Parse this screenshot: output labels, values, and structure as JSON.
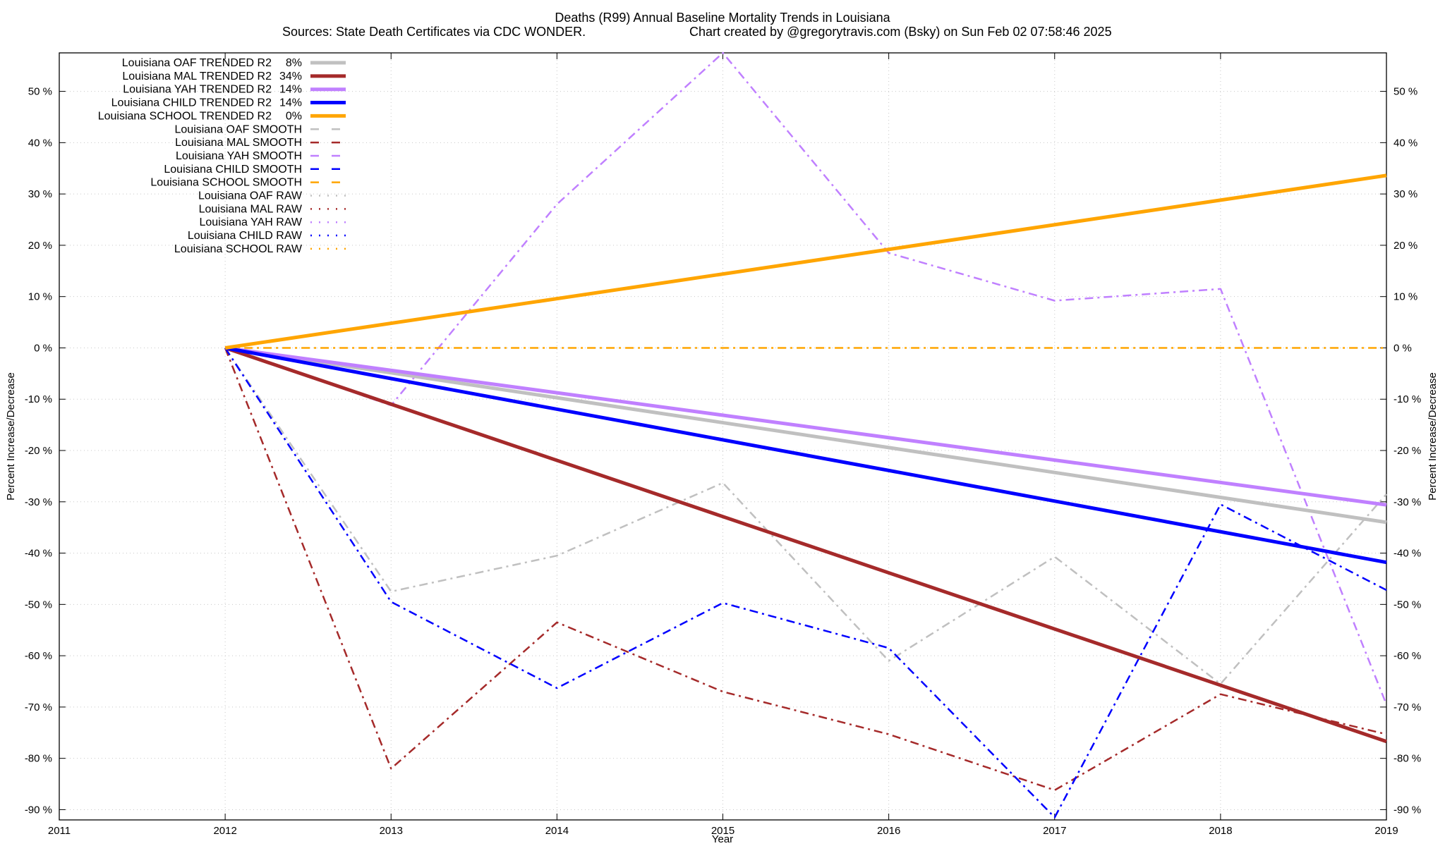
{
  "chart_data": {
    "type": "line",
    "title": "Deaths (R99)  Annual Baseline Mortality Trends in Louisiana",
    "subtitle_left": "Sources: State Death Certificates via CDC WONDER.",
    "subtitle_right": "Chart created by @gregorytravis.com (Bsky) on Sun Feb 02 07:58:46 2025",
    "xlabel": "Year",
    "ylabel": "Percent Increase/Decrease",
    "xlim": [
      2011,
      2019
    ],
    "ylim": [
      -92,
      57.5
    ],
    "x_ticks": [
      2011,
      2012,
      2013,
      2014,
      2015,
      2016,
      2017,
      2018,
      2019
    ],
    "y_ticks": [
      50,
      40,
      30,
      20,
      10,
      0,
      -10,
      -20,
      -30,
      -40,
      -50,
      -60,
      -70,
      -80,
      -90
    ],
    "y_tick_labels": [
      "50 %",
      "40 %",
      "30 %",
      "20 %",
      "10 %",
      "0 %",
      "-10 %",
      "-20 %",
      "-30 %",
      "-40 %",
      "-50 %",
      "-60 %",
      "-70 %",
      "-80 %",
      "-90 %"
    ],
    "grid": true,
    "legend_position": "top-left",
    "series": [
      {
        "name": "Louisiana OAF TRENDED R2",
        "r2": "8%",
        "style": "trend",
        "color": "#c0c0c0",
        "x": [
          2012,
          2019
        ],
        "values": [
          0,
          -34
        ]
      },
      {
        "name": "Louisiana MAL TRENDED R2",
        "r2": "34%",
        "style": "trend",
        "color": "#a52a2a",
        "x": [
          2012,
          2019
        ],
        "values": [
          0,
          -76.7
        ]
      },
      {
        "name": "Louisiana YAH TRENDED R2",
        "r2": "14%",
        "style": "trend",
        "color": "#c080ff",
        "x": [
          2012,
          2019
        ],
        "values": [
          0,
          -30.6
        ]
      },
      {
        "name": "Louisiana CHILD TRENDED R2",
        "r2": "14%",
        "style": "trend",
        "color": "#0000ff",
        "x": [
          2012,
          2019
        ],
        "values": [
          0,
          -41.8
        ]
      },
      {
        "name": "Louisiana SCHOOL TRENDED R2",
        "r2": "0%",
        "style": "trend",
        "color": "#ffa500",
        "x": [
          2012,
          2019
        ],
        "values": [
          0,
          33.6
        ]
      },
      {
        "name": "Louisiana OAF SMOOTH",
        "style": "smooth",
        "color": "#c0c0c0",
        "x": [
          2012,
          2013,
          2014,
          2015,
          2016,
          2017,
          2018,
          2019
        ],
        "values": [
          0,
          -47.5,
          -40.5,
          -26.3,
          -61,
          -40.7,
          -65.5,
          -28.5
        ]
      },
      {
        "name": "Louisiana MAL SMOOTH",
        "style": "smooth",
        "color": "#a52a2a",
        "x": [
          2012,
          2013,
          2014,
          2015,
          2016,
          2017,
          2018,
          2019
        ],
        "values": [
          0,
          -82,
          -53.5,
          -67,
          -75.3,
          -86.2,
          -67.5,
          -75.3
        ]
      },
      {
        "name": "Louisiana YAH SMOOTH",
        "style": "smooth",
        "color": "#c080ff",
        "x": [
          2012,
          2013,
          2014,
          2015,
          2016,
          2017,
          2018,
          2019
        ],
        "values": [
          0,
          -11.2,
          28,
          57.5,
          18.5,
          9.2,
          11.5,
          -69.5
        ]
      },
      {
        "name": "Louisiana CHILD SMOOTH",
        "style": "smooth",
        "color": "#0000ff",
        "x": [
          2012,
          2013,
          2014,
          2015,
          2016,
          2017,
          2018,
          2019
        ],
        "values": [
          0,
          -49.5,
          -66.3,
          -49.7,
          -58.5,
          -91.5,
          -30.5,
          -47.2
        ]
      },
      {
        "name": "Louisiana SCHOOL SMOOTH",
        "style": "smooth",
        "color": "#ffa500",
        "x": [
          2012,
          2013,
          2014,
          2015,
          2016,
          2017,
          2018,
          2019
        ],
        "values": [
          0,
          0,
          0,
          0,
          0,
          0,
          0,
          0
        ]
      },
      {
        "name": "Louisiana OAF RAW",
        "style": "raw",
        "color": "#c0c0c0",
        "x": [],
        "values": []
      },
      {
        "name": "Louisiana MAL RAW",
        "style": "raw",
        "color": "#a52a2a",
        "x": [],
        "values": []
      },
      {
        "name": "Louisiana YAH RAW",
        "style": "raw",
        "color": "#c080ff",
        "x": [],
        "values": []
      },
      {
        "name": "Louisiana CHILD RAW",
        "style": "raw",
        "color": "#0000ff",
        "x": [],
        "values": []
      },
      {
        "name": "Louisiana SCHOOL RAW",
        "style": "raw",
        "color": "#ffa500",
        "x": [],
        "values": []
      }
    ]
  }
}
